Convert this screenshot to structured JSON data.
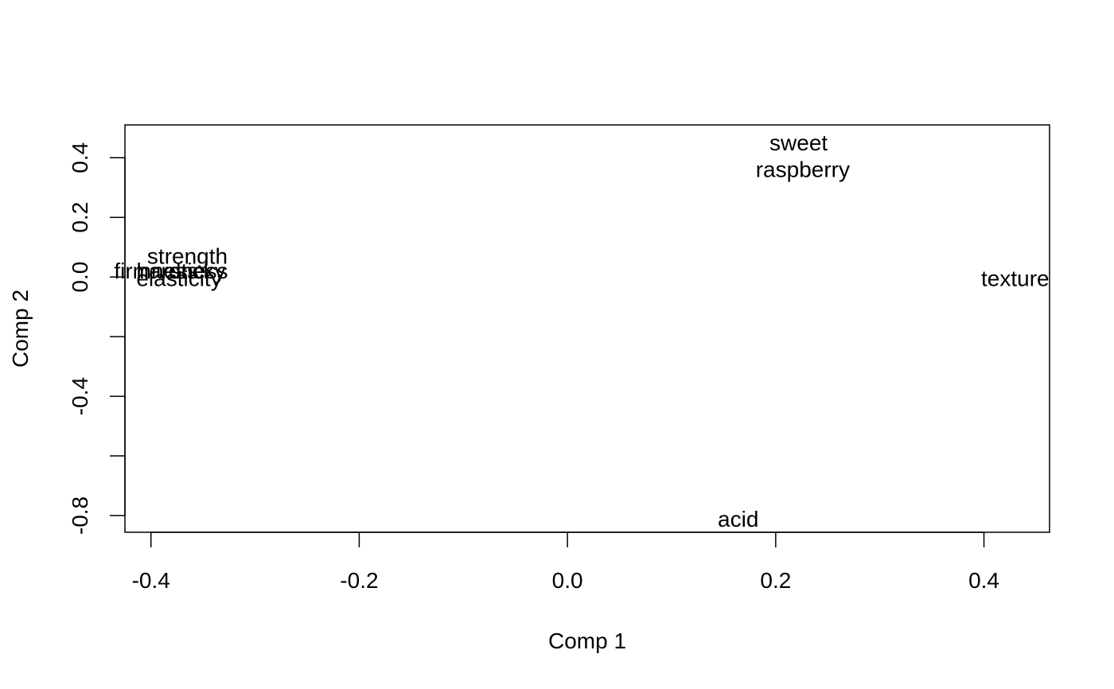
{
  "chart_data": {
    "type": "scatter",
    "title": "",
    "xlabel": "Comp 1",
    "ylabel": "Comp 2",
    "xlim": [
      -0.425,
      0.463
    ],
    "ylim": [
      -0.856,
      0.51
    ],
    "x_ticks": [
      {
        "value": -0.4,
        "label": "-0.4"
      },
      {
        "value": -0.2,
        "label": "-0.2"
      },
      {
        "value": 0.0,
        "label": "0.0"
      },
      {
        "value": 0.2,
        "label": "0.2"
      },
      {
        "value": 0.4,
        "label": "0.4"
      }
    ],
    "y_ticks": [
      {
        "value": 0.4,
        "label": "0.4"
      },
      {
        "value": 0.2,
        "label": "0.2"
      },
      {
        "value": 0.0,
        "label": "0.0"
      },
      {
        "value": -0.2,
        "label": ""
      },
      {
        "value": -0.4,
        "label": "-0.4"
      },
      {
        "value": -0.6,
        "label": ""
      },
      {
        "value": -0.8,
        "label": "-0.8"
      }
    ],
    "grid": false,
    "points": [
      {
        "label": "sweet",
        "x": 0.222,
        "y": 0.45
      },
      {
        "label": "raspberry",
        "x": 0.226,
        "y": 0.36
      },
      {
        "label": "texture",
        "x": 0.43,
        "y": -0.005
      },
      {
        "label": "acid",
        "x": 0.164,
        "y": -0.812
      },
      {
        "label": "strength",
        "x": -0.365,
        "y": 0.07
      },
      {
        "label": "sticky",
        "x": -0.355,
        "y": 0.02
      },
      {
        "label": "hardness",
        "x": -0.37,
        "y": 0.02
      },
      {
        "label": "firmness",
        "x": -0.395,
        "y": 0.02
      },
      {
        "label": "elasticity",
        "x": -0.373,
        "y": -0.005
      }
    ]
  }
}
